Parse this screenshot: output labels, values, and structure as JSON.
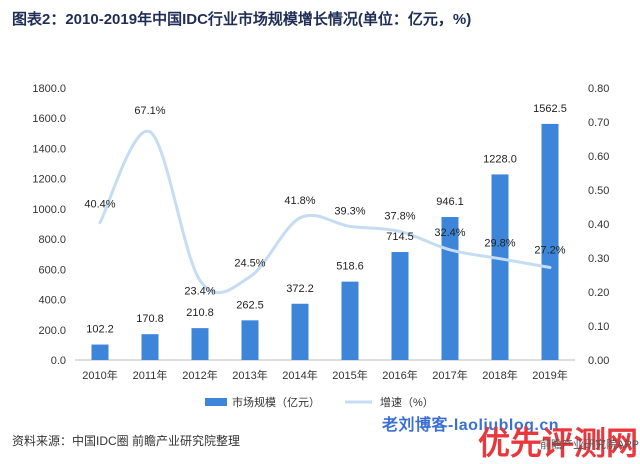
{
  "header": {
    "title": "图表2：2010-2019年中国IDC行业市场规模增长情况(单位：亿元，%)"
  },
  "footer": {
    "source": "资料来源：中国IDC圈 前瞻产业研究院整理"
  },
  "watermarks": {
    "blog": "老刘博客-laoliublog.cn",
    "logo": "优先评测网",
    "small": "前瞻产业研究院APP"
  },
  "colors": {
    "bar": "#3d85d8",
    "line": "#c5dcf2",
    "title": "#1f2d56"
  },
  "chart_data": {
    "type": "bar",
    "categories": [
      "2010年",
      "2011年",
      "2012年",
      "2013年",
      "2014年",
      "2015年",
      "2016年",
      "2017年",
      "2018年",
      "2019年"
    ],
    "series": [
      {
        "name": "市场规模（亿元）",
        "type": "bar",
        "axis": "left",
        "values": [
          102.2,
          170.8,
          210.8,
          262.5,
          372.2,
          518.6,
          714.5,
          946.1,
          1228.0,
          1562.5
        ],
        "labels": [
          "102.2",
          "170.8",
          "210.8",
          "262.5",
          "372.2",
          "518.6",
          "714.5",
          "946.1",
          "1228.0",
          "1562.5"
        ]
      },
      {
        "name": "增速（%）",
        "type": "line",
        "axis": "right",
        "values": [
          0.404,
          0.671,
          0.234,
          0.245,
          0.418,
          0.393,
          0.378,
          0.324,
          0.298,
          0.272
        ],
        "labels": [
          "40.4%",
          "67.1%",
          "23.4%",
          "24.5%",
          "41.8%",
          "39.3%",
          "37.8%",
          "32.4%",
          "29.8%",
          "27.2%"
        ]
      }
    ],
    "ylim_left": [
      0,
      1800
    ],
    "ylim_right": [
      0,
      0.8
    ],
    "yticks_left": [
      "0.0",
      "200.0",
      "400.0",
      "600.0",
      "800.0",
      "1000.0",
      "1200.0",
      "1400.0",
      "1600.0",
      "1800.0"
    ],
    "yticks_right": [
      "0.00",
      "0.10",
      "0.20",
      "0.30",
      "0.40",
      "0.50",
      "0.60",
      "0.70",
      "0.80"
    ],
    "legend_position": "bottom",
    "grid": false
  }
}
